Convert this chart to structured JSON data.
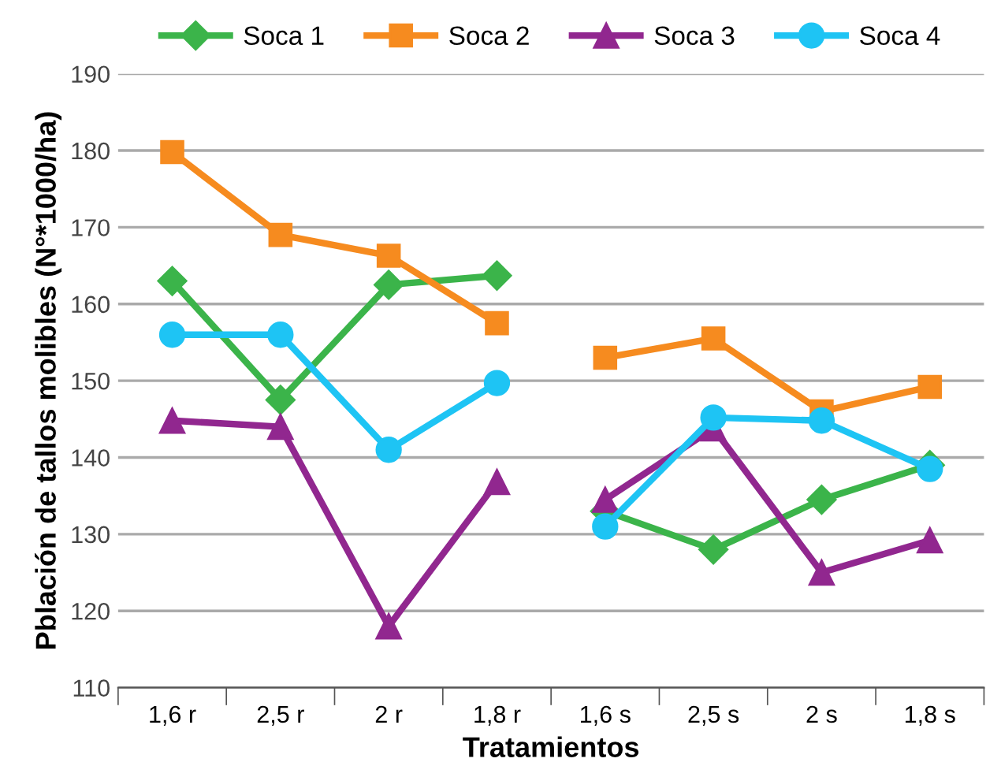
{
  "chart_data": {
    "type": "line",
    "xlabel": "Tratamientos",
    "ylabel": "Pblación de tallos molibles (N°*1000/ha)",
    "categories": [
      "1,6 r",
      "2,5 r",
      "2 r",
      "1,8 r",
      "1,6 s",
      "2,5 s",
      "2 s",
      "1,8 s"
    ],
    "series": [
      {
        "name": "Soca 1",
        "color": "#3bb44a",
        "marker": "diamond",
        "values": [
          163,
          147.5,
          162.5,
          163.7,
          null,
          null,
          null,
          null
        ]
      },
      {
        "name": "Soca 2",
        "color": "#f68b1f",
        "marker": "square",
        "values": [
          179.8,
          169,
          166.3,
          157.5,
          null,
          null,
          null,
          null
        ]
      },
      {
        "name": "Soca 3",
        "color": "#91278f",
        "marker": "triangle",
        "values": [
          144.8,
          144,
          118,
          136.8,
          null,
          null,
          null,
          null
        ]
      },
      {
        "name": "Soca 4",
        "color": "#1ec4f4",
        "marker": "circle",
        "values": [
          156,
          156,
          141,
          149.7,
          null,
          null,
          null,
          null
        ]
      },
      {
        "color": "#3bb44a",
        "marker": "diamond",
        "values": [
          null,
          null,
          null,
          null,
          133,
          128,
          134.5,
          139
        ]
      },
      {
        "color": "#f68b1f",
        "marker": "square",
        "values": [
          null,
          null,
          null,
          null,
          153,
          155.5,
          146,
          149.2
        ]
      },
      {
        "color": "#91278f",
        "marker": "triangle",
        "values": [
          null,
          null,
          null,
          null,
          134.5,
          143.8,
          125,
          129.2
        ]
      },
      {
        "color": "#1ec4f4",
        "marker": "circle",
        "values": [
          null,
          null,
          null,
          null,
          131,
          145.2,
          144.8,
          138.5
        ]
      }
    ],
    "ylim": [
      110,
      190
    ],
    "yticks": [
      110,
      120,
      130,
      140,
      150,
      160,
      170,
      180,
      190
    ],
    "grid": "y",
    "legend": "top"
  }
}
